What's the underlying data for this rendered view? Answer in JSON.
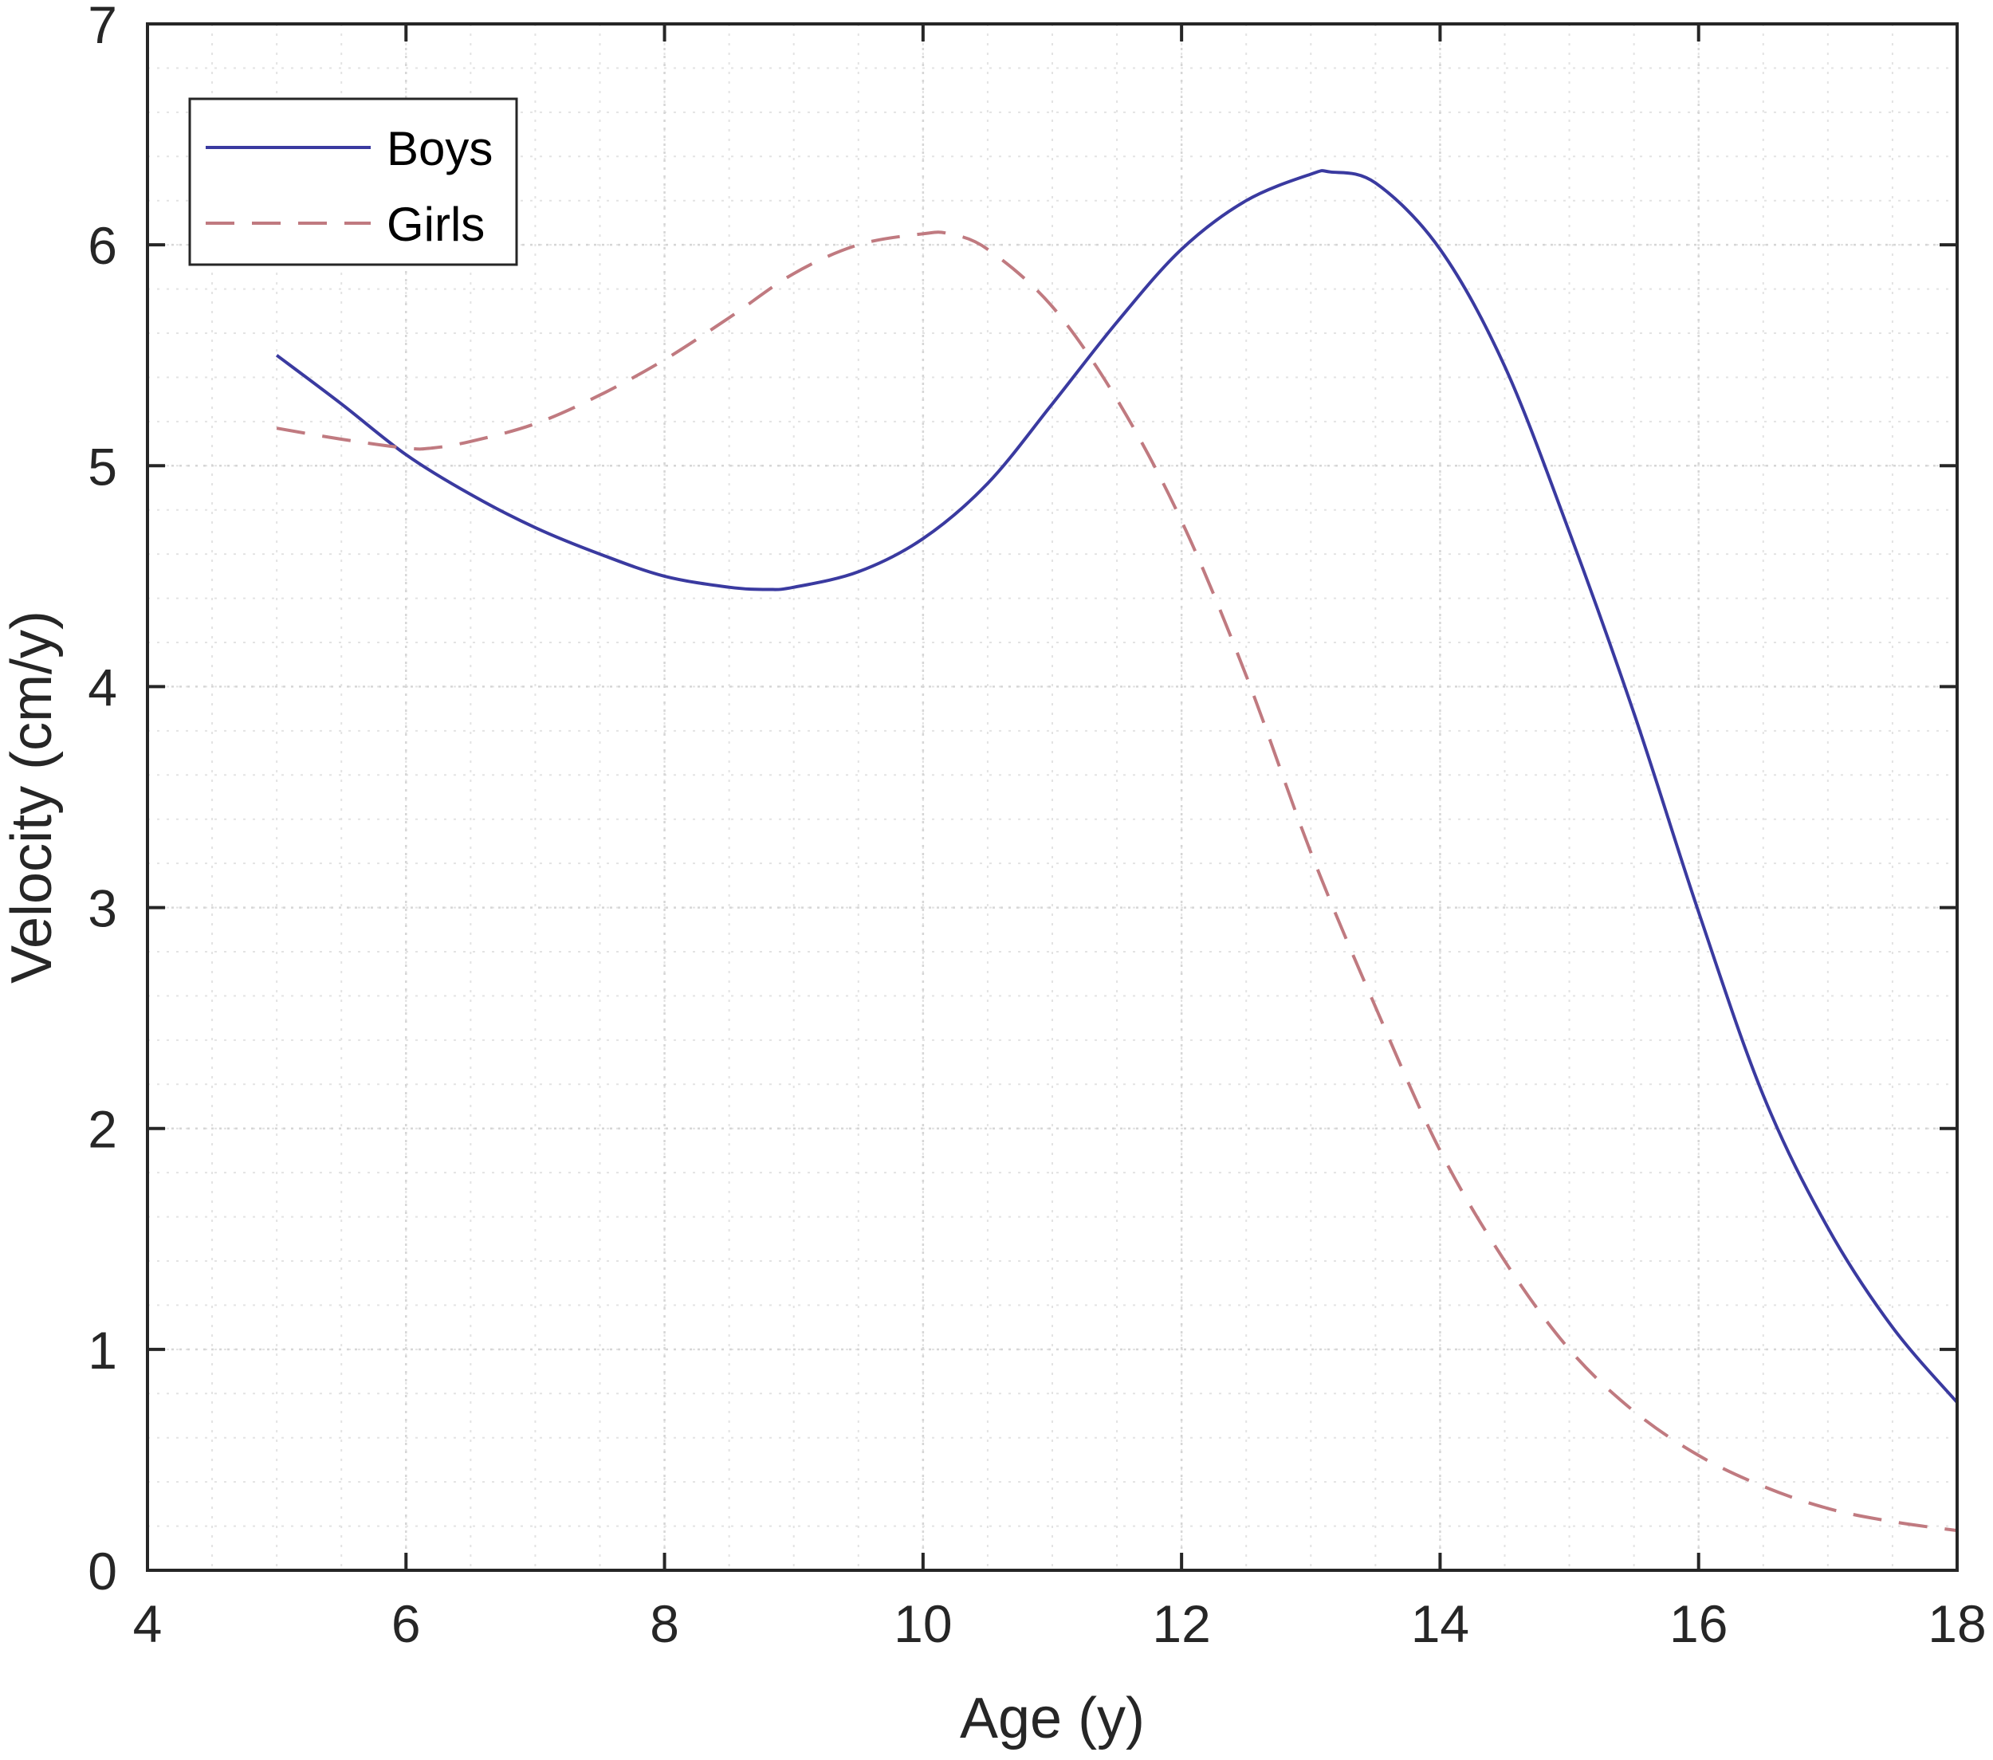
{
  "chart_data": {
    "type": "line",
    "title": "",
    "xlabel": "Age (y)",
    "ylabel": "Velocity (cm/y)",
    "xlim": [
      4,
      18
    ],
    "ylim": [
      0,
      7
    ],
    "xticks": [
      4,
      6,
      8,
      10,
      12,
      14,
      16,
      18
    ],
    "yticks": [
      0,
      1,
      2,
      3,
      4,
      5,
      6,
      7
    ],
    "grid": true,
    "minor_grid": true,
    "legend_position": "top-left",
    "series": [
      {
        "name": "Boys",
        "color": "#3a3aa0",
        "style": "solid",
        "x": [
          5,
          5.5,
          6,
          6.5,
          7,
          7.5,
          8,
          8.5,
          8.8,
          9,
          9.5,
          10,
          10.5,
          11,
          11.5,
          12,
          12.5,
          13,
          13.15,
          13.5,
          14,
          14.5,
          15,
          15.5,
          16,
          16.5,
          17,
          17.5,
          18
        ],
        "y": [
          5.5,
          5.28,
          5.05,
          4.87,
          4.72,
          4.6,
          4.5,
          4.45,
          4.44,
          4.45,
          4.52,
          4.67,
          4.92,
          5.28,
          5.65,
          5.98,
          6.2,
          6.32,
          6.33,
          6.28,
          5.98,
          5.45,
          4.7,
          3.88,
          2.98,
          2.15,
          1.55,
          1.1,
          0.76
        ]
      },
      {
        "name": "Girls",
        "color": "#c07a80",
        "style": "dashed",
        "x": [
          5,
          5.5,
          6,
          6.2,
          6.5,
          7,
          7.5,
          8,
          8.5,
          9,
          9.5,
          10,
          10.2,
          10.5,
          11,
          11.5,
          12,
          12.5,
          13,
          13.5,
          14,
          14.5,
          15,
          15.5,
          16,
          16.5,
          17,
          17.5,
          18
        ],
        "y": [
          5.17,
          5.12,
          5.08,
          5.08,
          5.11,
          5.19,
          5.32,
          5.48,
          5.67,
          5.87,
          6.0,
          6.05,
          6.05,
          5.98,
          5.72,
          5.3,
          4.75,
          4.05,
          3.25,
          2.55,
          1.9,
          1.4,
          1.0,
          0.72,
          0.52,
          0.38,
          0.28,
          0.22,
          0.18
        ]
      }
    ]
  }
}
